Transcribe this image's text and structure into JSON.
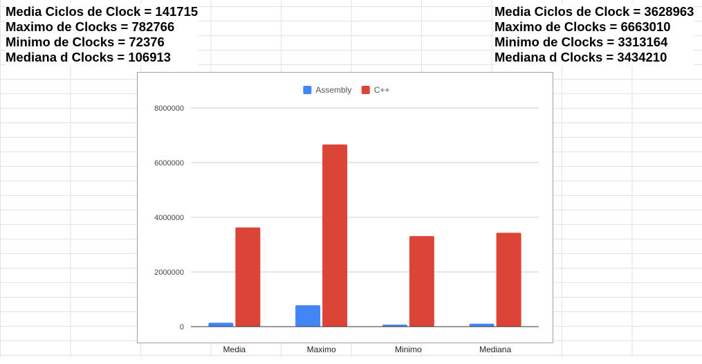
{
  "stats_left": {
    "lines": [
      "Media Ciclos de Clock = 141715",
      "Maximo de Clocks = 782766",
      "Minimo de Clocks = 72376",
      "Mediana d Clocks = 106913"
    ]
  },
  "stats_right": {
    "lines": [
      "Media Ciclos de Clock = 3628963",
      "Maximo de Clocks = 6663010",
      "Minimo de Clocks = 3313164",
      "Mediana d Clocks = 3434210"
    ]
  },
  "chart_data": {
    "type": "bar",
    "title": "",
    "xlabel": "",
    "ylabel": "",
    "categories": [
      "Media",
      "Maximo",
      "Minimo",
      "Mediana"
    ],
    "series": [
      {
        "name": "Assembly",
        "color": "#4285f4",
        "values": [
          141715,
          782766,
          72376,
          106913
        ]
      },
      {
        "name": "C++",
        "color": "#db4437",
        "values": [
          3628963,
          6663010,
          3313164,
          3434210
        ]
      }
    ],
    "yticks": [
      "0",
      "2000000",
      "4000000",
      "6000000",
      "8000000"
    ],
    "ylim": [
      0,
      8000000
    ],
    "grid": true,
    "legend_position": "top"
  }
}
